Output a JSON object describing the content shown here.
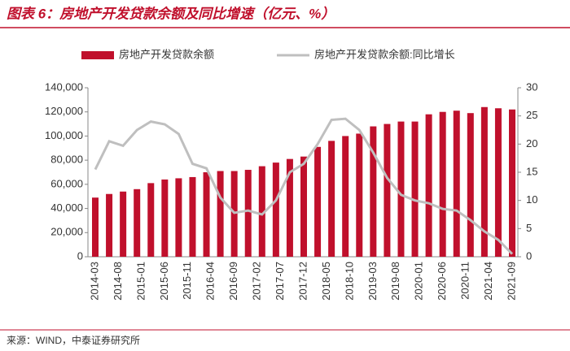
{
  "chart_data": {
    "type": "bar_line",
    "title": "图表 6：房地产开发贷款余额及同比增速（亿元、%）",
    "source": "来源：WIND，中泰证券研究所",
    "x": [
      "2014-03",
      "2014-06",
      "2014-09",
      "2014-12",
      "2015-03",
      "2015-06",
      "2015-09",
      "2015-12",
      "2016-03",
      "2016-06",
      "2016-09",
      "2016-12",
      "2017-03",
      "2017-06",
      "2017-09",
      "2017-12",
      "2018-03",
      "2018-06",
      "2018-09",
      "2018-12",
      "2019-03",
      "2019-06",
      "2019-09",
      "2019-12",
      "2020-03",
      "2020-06",
      "2020-09",
      "2020-12",
      "2021-03",
      "2021-06",
      "2021-09"
    ],
    "xticks": [
      "2014-03",
      "2014-08",
      "2015-01",
      "2015-06",
      "2015-11",
      "2016-04",
      "2016-09",
      "2017-02",
      "2017-07",
      "2017-12",
      "2018-05",
      "2018-10",
      "2019-03",
      "2019-08",
      "2020-01",
      "2020-06",
      "2020-11",
      "2021-04",
      "2021-09"
    ],
    "series": [
      {
        "name": "房地产开发贷款余额",
        "type": "bar",
        "color": "#c0102c",
        "values": [
          49000,
          52000,
          54000,
          56000,
          61000,
          64000,
          65000,
          66000,
          70000,
          71000,
          71000,
          72000,
          75000,
          78000,
          81000,
          83000,
          91000,
          96000,
          100000,
          102000,
          108000,
          110000,
          112000,
          112000,
          118000,
          120000,
          121000,
          119000,
          124000,
          123000,
          122000
        ]
      },
      {
        "name": "房地产开发贷款余额:同比增长",
        "type": "line",
        "axis": "y2",
        "color": "#bfbfbf",
        "values": [
          15.5,
          20.5,
          19.7,
          22.5,
          24.0,
          23.5,
          21.8,
          16.5,
          15.7,
          10.5,
          7.8,
          8.2,
          7.5,
          10.0,
          15.0,
          16.5,
          20.0,
          24.3,
          24.5,
          22.5,
          18.5,
          14.0,
          11.0,
          10.0,
          9.5,
          8.5,
          8.2,
          6.5,
          4.5,
          3.0,
          0.5
        ]
      }
    ],
    "ylim": [
      0,
      140000
    ],
    "yticks": [
      0,
      {
        "value": 20000,
        "label": "20,000"
      },
      {
        "value": 40000,
        "label": "40,000"
      },
      {
        "value": 60000,
        "label": "60,000"
      },
      {
        "value": 80000,
        "label": "80,000"
      },
      {
        "value": 100000,
        "label": "100,000"
      },
      {
        "value": 120000,
        "label": "120,000"
      },
      {
        "value": 140000,
        "label": "140,000"
      }
    ],
    "y2lim": [
      0,
      30
    ],
    "y2ticks": [
      0,
      5,
      10,
      15,
      20,
      25,
      30
    ]
  }
}
